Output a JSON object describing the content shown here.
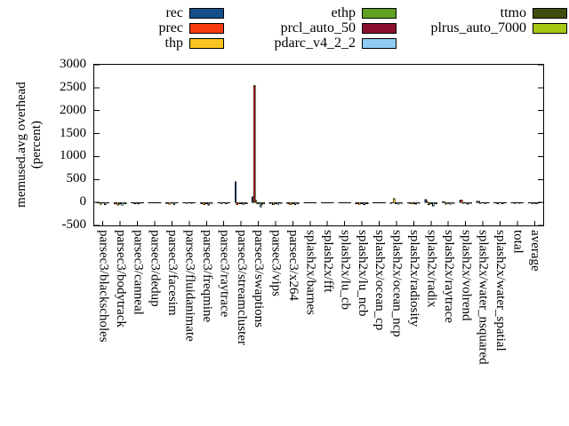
{
  "chart_data": {
    "type": "bar",
    "title": "",
    "ylabel": "memused.avg overhead (percent)",
    "ylabel_lines": [
      "memused.avg overhead",
      "(percent)"
    ],
    "ylim": [
      -500,
      3000
    ],
    "yticks": [
      3000,
      2500,
      2000,
      1500,
      1000,
      500,
      0,
      -500
    ],
    "grid": false,
    "legend_position": "top",
    "bar_border_color": "#000000",
    "categories": [
      "parsec3/blackscholes",
      "parsec3/bodytrack",
      "parsec3/canneal",
      "parsec3/dedup",
      "parsec3/facesim",
      "parsec3/fluidanimate",
      "parsec3/freqmine",
      "parsec3/raytrace",
      "parsec3/streamcluster",
      "parsec3/swaptions",
      "parsec3/vips",
      "parsec3/x264",
      "splash2x/barnes",
      "splash2x/fft",
      "splash2x/lu_cb",
      "splash2x/lu_ncb",
      "splash2x/ocean_cp",
      "splash2x/ocean_ncp",
      "splash2x/radiosity",
      "splash2x/radix",
      "splash2x/raytrace",
      "splash2x/volrend",
      "splash2x/water_nsquared",
      "splash2x/water_spatial",
      "total",
      "average"
    ],
    "series": [
      {
        "name": "rec",
        "color": "#154f8b",
        "values": [
          -10,
          -25,
          -12,
          -5,
          -18,
          -10,
          -22,
          -12,
          450,
          120,
          -18,
          -22,
          -8,
          -5,
          -8,
          -25,
          -5,
          -20,
          -15,
          60,
          15,
          40,
          25,
          -10,
          -8,
          -12
        ]
      },
      {
        "name": "prec",
        "color": "#f93d10",
        "values": [
          -12,
          -30,
          -15,
          -8,
          -22,
          -12,
          -28,
          -15,
          -50,
          2550,
          -22,
          -28,
          -10,
          -8,
          -10,
          -30,
          -8,
          -15,
          -20,
          25,
          20,
          55,
          30,
          -15,
          -10,
          -15
        ]
      },
      {
        "name": "thp",
        "color": "#fcc421",
        "values": [
          -40,
          -55,
          -25,
          -10,
          -40,
          -20,
          -50,
          -30,
          -30,
          40,
          -45,
          -50,
          -15,
          -10,
          -12,
          -40,
          -10,
          80,
          -30,
          -45,
          -35,
          -20,
          -20,
          -25,
          -18,
          -30
        ]
      },
      {
        "name": "ethp",
        "color": "#60a020",
        "values": [
          -10,
          -35,
          -10,
          -8,
          -15,
          -10,
          -30,
          -12,
          -25,
          -30,
          -20,
          -25,
          -10,
          -8,
          -10,
          -30,
          -8,
          -25,
          -20,
          -20,
          -20,
          -15,
          -15,
          -15,
          -10,
          -15
        ]
      },
      {
        "name": "prcl_auto_50",
        "color": "#8a0f2f",
        "values": [
          -15,
          -25,
          -30,
          -6,
          -20,
          -15,
          -25,
          -15,
          -30,
          -20,
          -25,
          -30,
          -12,
          -8,
          -10,
          -30,
          -8,
          -20,
          -25,
          -25,
          -20,
          -20,
          -15,
          -15,
          -12,
          -18
        ]
      },
      {
        "name": "pdarc_v4_2_2",
        "color": "#8fcbf2",
        "values": [
          -45,
          -60,
          -20,
          -10,
          -45,
          -18,
          -55,
          -25,
          -35,
          -100,
          -40,
          -45,
          -15,
          -10,
          -12,
          -45,
          -10,
          -40,
          -35,
          -75,
          -40,
          -35,
          -30,
          -25,
          -18,
          -30
        ]
      },
      {
        "name": "ttmo",
        "color": "#3f4d0e",
        "values": [
          -10,
          -20,
          -10,
          -5,
          -10,
          -8,
          -15,
          -10,
          -20,
          -40,
          -15,
          -20,
          -8,
          -5,
          -8,
          -20,
          -5,
          -15,
          -15,
          -20,
          -15,
          -15,
          -10,
          -10,
          -8,
          -12
        ]
      },
      {
        "name": "plrus_auto_7000",
        "color": "#a4c814",
        "values": [
          -12,
          -25,
          -10,
          -8,
          -15,
          -10,
          -20,
          -12,
          -25,
          -30,
          -20,
          -25,
          -10,
          -8,
          -10,
          -25,
          -8,
          -20,
          -20,
          -25,
          -20,
          -20,
          -15,
          -15,
          -10,
          -15
        ]
      }
    ]
  }
}
